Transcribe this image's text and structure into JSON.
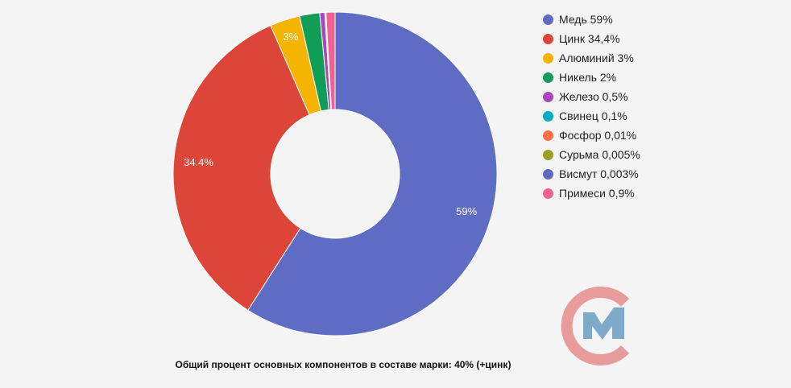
{
  "chart_data": {
    "type": "pie",
    "labels": [
      "Медь",
      "Цинк",
      "Алюминий",
      "Никель",
      "Железо",
      "Свинец",
      "Фосфор",
      "Сурьма",
      "Висмут",
      "Примеси"
    ],
    "values": [
      59,
      34.4,
      3,
      2,
      0.5,
      0.1,
      0.01,
      0.005,
      0.003,
      0.9
    ],
    "colors": [
      "#5f6cc3",
      "#dc4538",
      "#f4b400",
      "#0f9d58",
      "#ab47bc",
      "#00acc1",
      "#ff7043",
      "#9e9d24",
      "#5c6bc0",
      "#f06292"
    ],
    "slice_labels": [
      "59%",
      "34.4%",
      "3%",
      "",
      "",
      "",
      "",
      "",
      "",
      ""
    ],
    "legend": [
      "Медь 59%",
      "Цинк 34,4%",
      "Алюминий 3%",
      "Никель 2%",
      "Железо 0,5%",
      "Свинец 0,1%",
      "Фосфор 0,01%",
      "Сурьма 0,005%",
      "Висмут 0,003%",
      "Примеси 0,9%"
    ],
    "legend_position": "right",
    "donut": true
  },
  "footer": {
    "note": "Общий процент основных компонентов в составе марки: 40% (+цинк)"
  },
  "logo": {
    "name": "cm-logo-icon",
    "colors": [
      "#e89b9b",
      "#7fa9c9"
    ]
  }
}
